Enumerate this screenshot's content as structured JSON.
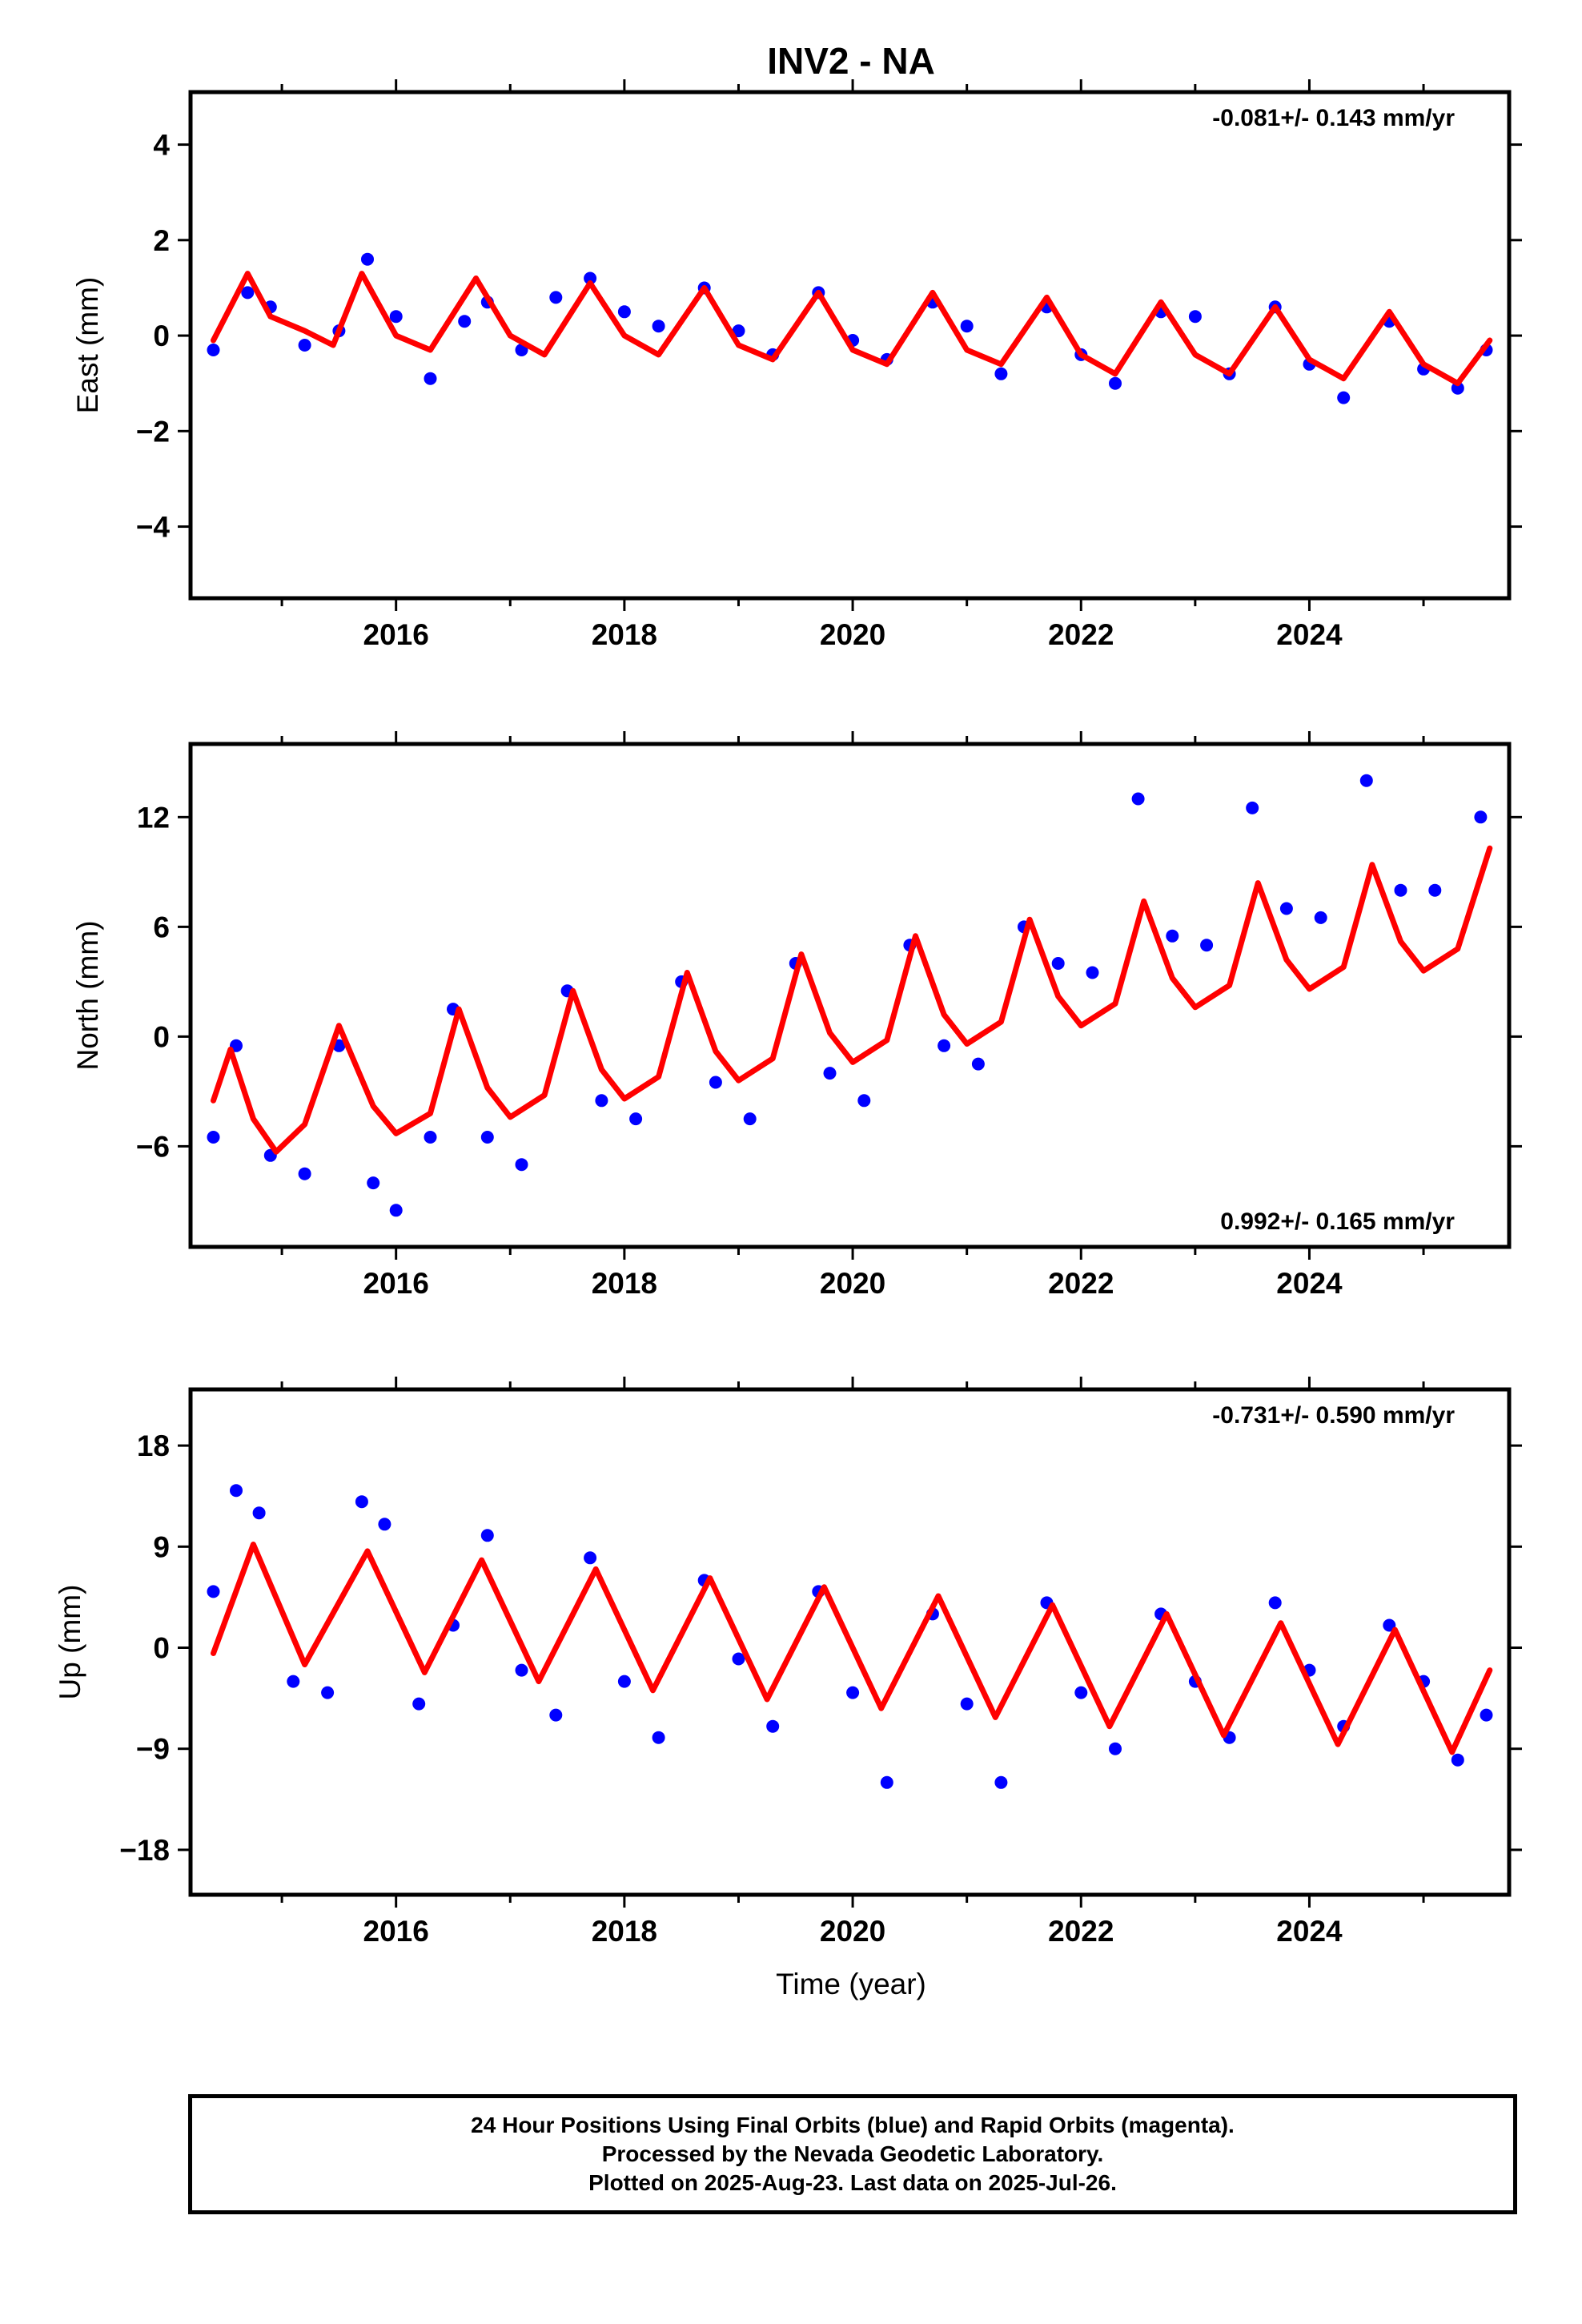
{
  "page_title": "INV2 - NA",
  "colors": {
    "points": "#0000ff",
    "fit": "#ff0000",
    "axis": "#000000"
  },
  "x_axis_label": "Time (year)",
  "chart_data": [
    {
      "type": "scatter",
      "ylabel": "East (mm)",
      "rate": "-0.081+/- 0.143 mm/yr",
      "rate_position": "top-right",
      "xlim": [
        2014.2,
        2025.75
      ],
      "ylim": [
        -5.5,
        5.1
      ],
      "x_ticks": [
        2016,
        2018,
        2020,
        2022,
        2024
      ],
      "x_tick_labels": [
        "2016",
        "2018",
        "2020",
        "2022",
        "2024"
      ],
      "y_ticks": [
        -4,
        -2,
        0,
        2,
        4
      ],
      "y_tick_labels": [
        "−4",
        "−2",
        "0",
        "2",
        "4"
      ],
      "series": [
        {
          "kind": "points",
          "x": [
            2014.4,
            2014.7,
            2014.9,
            2015.2,
            2015.5,
            2015.75,
            2016.0,
            2016.3,
            2016.6,
            2016.8,
            2017.1,
            2017.4,
            2017.7,
            2018.0,
            2018.3,
            2018.7,
            2019.0,
            2019.3,
            2019.7,
            2020.0,
            2020.3,
            2020.7,
            2021.0,
            2021.3,
            2021.7,
            2022.0,
            2022.3,
            2022.7,
            2023.0,
            2023.3,
            2023.7,
            2024.0,
            2024.3,
            2024.7,
            2025.0,
            2025.3,
            2025.55
          ],
          "y": [
            -0.3,
            0.9,
            0.6,
            -0.2,
            0.1,
            1.6,
            0.4,
            -0.9,
            0.3,
            0.7,
            -0.3,
            0.8,
            1.2,
            0.5,
            0.2,
            1.0,
            0.1,
            -0.4,
            0.9,
            -0.1,
            -0.5,
            0.7,
            0.2,
            -0.8,
            0.6,
            -0.4,
            -1.0,
            0.5,
            0.4,
            -0.8,
            0.6,
            -0.6,
            -1.3,
            0.3,
            -0.7,
            -1.1,
            -0.3
          ]
        },
        {
          "kind": "fit",
          "x": [
            2014.4,
            2014.7,
            2014.9,
            2015.2,
            2015.45,
            2015.7,
            2016.0,
            2016.3,
            2016.7,
            2017.0,
            2017.3,
            2017.7,
            2018.0,
            2018.3,
            2018.7,
            2019.0,
            2019.3,
            2019.7,
            2020.0,
            2020.3,
            2020.7,
            2021.0,
            2021.3,
            2021.7,
            2022.0,
            2022.3,
            2022.7,
            2023.0,
            2023.3,
            2023.7,
            2024.0,
            2024.3,
            2024.7,
            2025.0,
            2025.3,
            2025.58
          ],
          "y": [
            -0.1,
            1.3,
            0.4,
            0.1,
            -0.2,
            1.3,
            0.0,
            -0.3,
            1.2,
            0.0,
            -0.4,
            1.1,
            0.0,
            -0.4,
            1.0,
            -0.2,
            -0.5,
            0.9,
            -0.3,
            -0.6,
            0.9,
            -0.3,
            -0.6,
            0.8,
            -0.4,
            -0.8,
            0.7,
            -0.4,
            -0.8,
            0.6,
            -0.5,
            -0.9,
            0.5,
            -0.6,
            -1.0,
            -0.1
          ]
        }
      ]
    },
    {
      "type": "scatter",
      "ylabel": "North (mm)",
      "rate": "0.992+/- 0.165 mm/yr",
      "rate_position": "bottom-right",
      "xlim": [
        2014.2,
        2025.75
      ],
      "ylim": [
        -11.5,
        16
      ],
      "x_ticks": [
        2016,
        2018,
        2020,
        2022,
        2024
      ],
      "x_tick_labels": [
        "2016",
        "2018",
        "2020",
        "2022",
        "2024"
      ],
      "y_ticks": [
        -6,
        0,
        6,
        12
      ],
      "y_tick_labels": [
        "−6",
        "0",
        "6",
        "12"
      ],
      "series": [
        {
          "kind": "points",
          "x": [
            2014.4,
            2014.6,
            2014.9,
            2015.2,
            2015.5,
            2015.8,
            2016.0,
            2016.3,
            2016.5,
            2016.8,
            2017.1,
            2017.5,
            2017.8,
            2018.1,
            2018.5,
            2018.8,
            2019.1,
            2019.5,
            2019.8,
            2020.1,
            2020.5,
            2020.8,
            2021.1,
            2021.5,
            2021.8,
            2022.1,
            2022.5,
            2022.8,
            2023.1,
            2023.5,
            2023.8,
            2024.1,
            2024.5,
            2024.8,
            2025.1,
            2025.5
          ],
          "y": [
            -5.5,
            -0.5,
            -6.5,
            -7.5,
            -0.5,
            -8.0,
            -9.5,
            -5.5,
            1.5,
            -5.5,
            -7.0,
            2.5,
            -3.5,
            -4.5,
            3.0,
            -2.5,
            -4.5,
            4.0,
            -2.0,
            -3.5,
            5.0,
            -0.5,
            -1.5,
            6.0,
            4.0,
            3.5,
            13.0,
            5.5,
            5.0,
            12.5,
            7.0,
            6.5,
            14.0,
            8.0,
            8.0,
            12.0
          ]
        },
        {
          "kind": "fit",
          "x": [
            2014.4,
            2014.55,
            2014.75,
            2014.95,
            2015.2,
            2015.5,
            2015.8,
            2016.0,
            2016.3,
            2016.55,
            2016.8,
            2017.0,
            2017.3,
            2017.55,
            2017.8,
            2018.0,
            2018.3,
            2018.55,
            2018.8,
            2019.0,
            2019.3,
            2019.55,
            2019.8,
            2020.0,
            2020.3,
            2020.55,
            2020.8,
            2021.0,
            2021.3,
            2021.55,
            2021.8,
            2022.0,
            2022.3,
            2022.55,
            2022.8,
            2023.0,
            2023.3,
            2023.55,
            2023.8,
            2024.0,
            2024.3,
            2024.55,
            2024.8,
            2025.0,
            2025.3,
            2025.58
          ],
          "y": [
            -3.5,
            -0.7,
            -4.5,
            -6.3,
            -4.8,
            0.6,
            -3.8,
            -5.3,
            -4.2,
            1.5,
            -2.8,
            -4.4,
            -3.2,
            2.5,
            -1.8,
            -3.4,
            -2.2,
            3.5,
            -0.8,
            -2.4,
            -1.2,
            4.5,
            0.2,
            -1.4,
            -0.2,
            5.5,
            1.2,
            -0.4,
            0.8,
            6.4,
            2.2,
            0.6,
            1.8,
            7.4,
            3.2,
            1.6,
            2.8,
            8.4,
            4.2,
            2.6,
            3.8,
            9.4,
            5.2,
            3.6,
            4.8,
            10.3
          ]
        }
      ]
    },
    {
      "type": "scatter",
      "ylabel": "Up (mm)",
      "rate": "-0.731+/- 0.590 mm/yr",
      "rate_position": "top-right",
      "xlim": [
        2014.2,
        2025.75
      ],
      "ylim": [
        -22,
        23
      ],
      "x_ticks": [
        2016,
        2018,
        2020,
        2022,
        2024
      ],
      "x_tick_labels": [
        "2016",
        "2018",
        "2020",
        "2022",
        "2024"
      ],
      "y_ticks": [
        -18,
        -9,
        0,
        9,
        18
      ],
      "y_tick_labels": [
        "−18",
        "−9",
        "0",
        "9",
        "18"
      ],
      "series": [
        {
          "kind": "points",
          "x": [
            2014.4,
            2014.6,
            2014.8,
            2015.1,
            2015.4,
            2015.7,
            2015.9,
            2016.2,
            2016.5,
            2016.8,
            2017.1,
            2017.4,
            2017.7,
            2018.0,
            2018.3,
            2018.7,
            2019.0,
            2019.3,
            2019.7,
            2020.0,
            2020.3,
            2020.7,
            2021.0,
            2021.3,
            2021.7,
            2022.0,
            2022.3,
            2022.7,
            2023.0,
            2023.3,
            2023.7,
            2024.0,
            2024.3,
            2024.7,
            2025.0,
            2025.3,
            2025.55
          ],
          "y": [
            5.0,
            14.0,
            12.0,
            -3.0,
            -4.0,
            13.0,
            11.0,
            -5.0,
            2.0,
            10.0,
            -2.0,
            -6.0,
            8.0,
            -3.0,
            -8.0,
            6.0,
            -1.0,
            -7.0,
            5.0,
            -4.0,
            -12.0,
            3.0,
            -5.0,
            -12.0,
            4.0,
            -4.0,
            -9.0,
            3.0,
            -3.0,
            -8.0,
            4.0,
            -2.0,
            -7.0,
            2.0,
            -3.0,
            -10.0,
            -6.0
          ]
        },
        {
          "kind": "fit",
          "x": [
            2014.4,
            2014.75,
            2015.2,
            2015.75,
            2016.25,
            2016.75,
            2017.25,
            2017.75,
            2018.25,
            2018.75,
            2019.25,
            2019.75,
            2020.25,
            2020.75,
            2021.25,
            2021.75,
            2022.25,
            2022.75,
            2023.25,
            2023.75,
            2024.25,
            2024.75,
            2025.25,
            2025.58
          ],
          "y": [
            -0.5,
            9.2,
            -1.5,
            8.6,
            -2.2,
            7.8,
            -3.0,
            7.0,
            -3.8,
            6.2,
            -4.6,
            5.4,
            -5.4,
            4.6,
            -6.2,
            3.8,
            -7.0,
            3.0,
            -7.8,
            2.2,
            -8.6,
            1.6,
            -9.3,
            -2.0
          ]
        }
      ]
    }
  ],
  "footer": {
    "line1": "24 Hour Positions Using Final Orbits (blue) and Rapid Orbits (magenta).",
    "line2": "Processed by the Nevada Geodetic Laboratory.",
    "line3": "Plotted on 2025-Aug-23. Last data on 2025-Jul-26."
  }
}
